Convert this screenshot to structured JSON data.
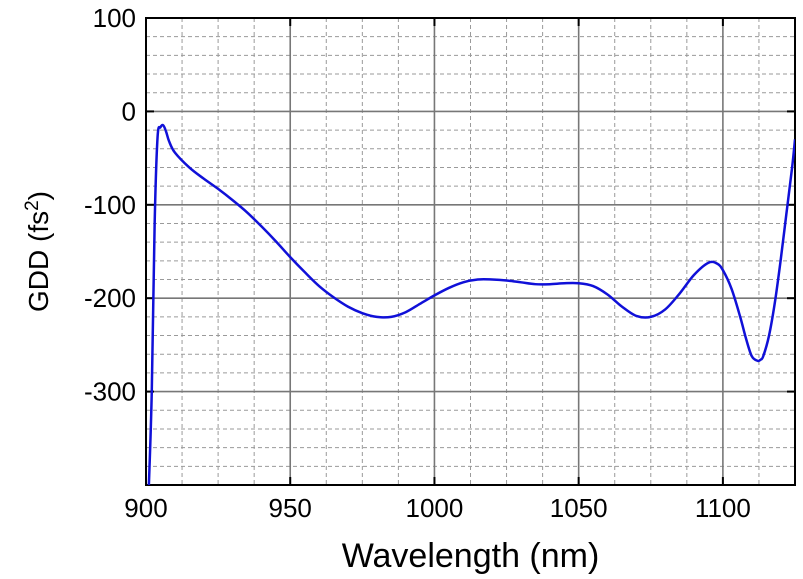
{
  "chart_data": {
    "type": "line",
    "title": "",
    "xlabel": "Wavelength (nm)",
    "ylabel": {
      "text": "GDD (fs",
      "superscript": "2",
      "close": ")"
    },
    "xlim": [
      900,
      1125
    ],
    "ylim": [
      -400,
      100
    ],
    "xticks": [
      900,
      950,
      1000,
      1050,
      1100
    ],
    "yticks": [
      100,
      0,
      -100,
      -200,
      -300
    ],
    "xticks_labels": [
      "900",
      "950",
      "1000",
      "1050",
      "1100"
    ],
    "yticks_labels": [
      "100",
      "0",
      "-100",
      "-200",
      "-300"
    ],
    "minor_x_step": 12.5,
    "minor_y_step": 20,
    "grid": true,
    "series": [
      {
        "color": "#1010d8",
        "x": [
          901,
          902,
          903,
          904,
          905,
          906,
          907,
          908,
          910,
          915,
          920,
          925,
          930,
          935,
          940,
          945,
          950,
          955,
          960,
          965,
          970,
          975,
          980,
          985,
          990,
          995,
          1000,
          1005,
          1010,
          1015,
          1020,
          1025,
          1030,
          1035,
          1040,
          1045,
          1050,
          1055,
          1060,
          1065,
          1070,
          1075,
          1080,
          1085,
          1090,
          1095,
          1098,
          1100,
          1103,
          1106,
          1108,
          1110,
          1112,
          1113,
          1114,
          1116,
          1118,
          1120,
          1122,
          1124,
          1125
        ],
        "y": [
          -400,
          -300,
          -120,
          -28,
          -17,
          -15,
          -22,
          -32,
          -44,
          -60,
          -72,
          -83,
          -95,
          -108,
          -123,
          -139,
          -156,
          -172,
          -187,
          -199,
          -209,
          -216,
          -220,
          -220,
          -215,
          -206,
          -197,
          -189,
          -183,
          -180,
          -180,
          -181,
          -183,
          -185,
          -185,
          -184,
          -184,
          -187,
          -196,
          -209,
          -219,
          -220,
          -212,
          -195,
          -175,
          -162,
          -163,
          -170,
          -190,
          -220,
          -243,
          -262,
          -267,
          -266,
          -262,
          -240,
          -205,
          -160,
          -110,
          -60,
          -30
        ]
      }
    ]
  }
}
